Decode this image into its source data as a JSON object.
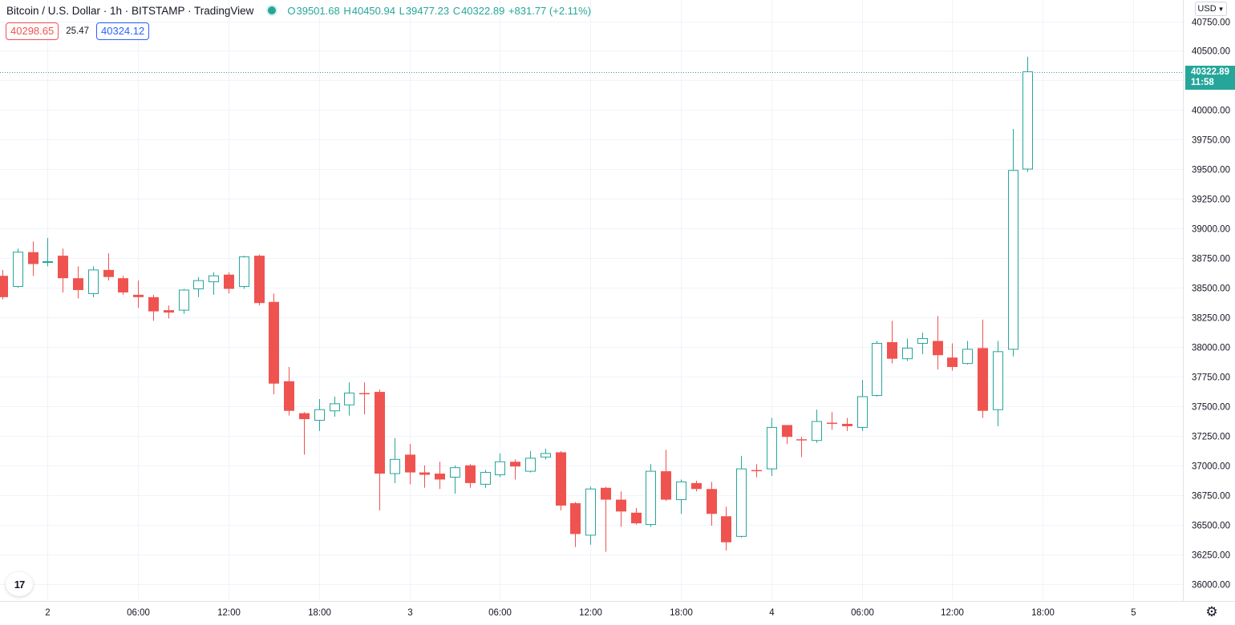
{
  "header": {
    "title": "Bitcoin / U.S. Dollar · 1h · BITSTAMP · TradingView",
    "ohlc": {
      "open_label": "O",
      "open": "39501.68",
      "high_label": "H",
      "high": "40450.94",
      "low_label": "L",
      "low": "39477.23",
      "close_label": "C",
      "close": "40322.89",
      "change": "+831.77 (+2.11%)"
    },
    "bid": "40298.65",
    "spread": "25.47",
    "ask": "40324.12"
  },
  "currency_button": {
    "label": "USD",
    "icon": "chevron-down-icon"
  },
  "last_price_tag": {
    "price": "40322.89",
    "countdown": "11:58"
  },
  "logo": {
    "text": "17"
  },
  "settings": {
    "icon": "gear-icon"
  },
  "colors": {
    "up": "#26a69a",
    "down": "#ef5350",
    "grid": "#f0f3fa",
    "axis_border": "#e0e3eb"
  },
  "chart_data": {
    "type": "candlestick",
    "symbol": "Bitcoin / U.S. Dollar",
    "interval": "1h",
    "exchange": "BITSTAMP",
    "ylim": [
      35900,
      40850
    ],
    "y_ticks": [
      36000,
      36250,
      36500,
      36750,
      37000,
      37250,
      37500,
      37750,
      38000,
      38250,
      38500,
      38750,
      39000,
      39250,
      39500,
      39750,
      40000,
      40250,
      40500,
      40750
    ],
    "x_ticks": [
      {
        "index": 3,
        "label": "2"
      },
      {
        "index": 9,
        "label": "06:00"
      },
      {
        "index": 15,
        "label": "12:00"
      },
      {
        "index": 21,
        "label": "18:00"
      },
      {
        "index": 27,
        "label": "3"
      },
      {
        "index": 33,
        "label": "06:00"
      },
      {
        "index": 39,
        "label": "12:00"
      },
      {
        "index": 45,
        "label": "18:00"
      },
      {
        "index": 51,
        "label": "4"
      },
      {
        "index": 57,
        "label": "06:00"
      },
      {
        "index": 63,
        "label": "12:00"
      },
      {
        "index": 69,
        "label": "18:00"
      },
      {
        "index": 75,
        "label": "5"
      }
    ],
    "last_price": 40322.89,
    "candles": [
      {
        "o": 38600,
        "h": 38650,
        "l": 38400,
        "c": 38420
      },
      {
        "o": 38510,
        "h": 38830,
        "l": 38500,
        "c": 38800
      },
      {
        "o": 38800,
        "h": 38890,
        "l": 38600,
        "c": 38700
      },
      {
        "o": 38720,
        "h": 38920,
        "l": 38680,
        "c": 38720
      },
      {
        "o": 38770,
        "h": 38830,
        "l": 38460,
        "c": 38580
      },
      {
        "o": 38580,
        "h": 38680,
        "l": 38410,
        "c": 38480
      },
      {
        "o": 38450,
        "h": 38680,
        "l": 38420,
        "c": 38650
      },
      {
        "o": 38650,
        "h": 38790,
        "l": 38560,
        "c": 38590
      },
      {
        "o": 38580,
        "h": 38600,
        "l": 38440,
        "c": 38460
      },
      {
        "o": 38440,
        "h": 38560,
        "l": 38330,
        "c": 38420
      },
      {
        "o": 38420,
        "h": 38440,
        "l": 38220,
        "c": 38300
      },
      {
        "o": 38310,
        "h": 38350,
        "l": 38240,
        "c": 38290
      },
      {
        "o": 38310,
        "h": 38490,
        "l": 38280,
        "c": 38480
      },
      {
        "o": 38490,
        "h": 38590,
        "l": 38420,
        "c": 38560
      },
      {
        "o": 38550,
        "h": 38630,
        "l": 38440,
        "c": 38600
      },
      {
        "o": 38610,
        "h": 38630,
        "l": 38450,
        "c": 38490
      },
      {
        "o": 38510,
        "h": 38770,
        "l": 38490,
        "c": 38760
      },
      {
        "o": 38770,
        "h": 38780,
        "l": 38350,
        "c": 38370
      },
      {
        "o": 38380,
        "h": 38450,
        "l": 37600,
        "c": 37690
      },
      {
        "o": 37710,
        "h": 37830,
        "l": 37420,
        "c": 37460
      },
      {
        "o": 37440,
        "h": 37450,
        "l": 37090,
        "c": 37390
      },
      {
        "o": 37380,
        "h": 37560,
        "l": 37290,
        "c": 37470
      },
      {
        "o": 37460,
        "h": 37580,
        "l": 37410,
        "c": 37520
      },
      {
        "o": 37510,
        "h": 37700,
        "l": 37420,
        "c": 37610
      },
      {
        "o": 37610,
        "h": 37700,
        "l": 37430,
        "c": 37600
      },
      {
        "o": 37620,
        "h": 37640,
        "l": 36620,
        "c": 36930
      },
      {
        "o": 36930,
        "h": 37230,
        "l": 36850,
        "c": 37050
      },
      {
        "o": 37090,
        "h": 37180,
        "l": 36840,
        "c": 36940
      },
      {
        "o": 36940,
        "h": 37000,
        "l": 36810,
        "c": 36920
      },
      {
        "o": 36930,
        "h": 37030,
        "l": 36800,
        "c": 36880
      },
      {
        "o": 36900,
        "h": 37000,
        "l": 36760,
        "c": 36980
      },
      {
        "o": 37000,
        "h": 37010,
        "l": 36810,
        "c": 36850
      },
      {
        "o": 36840,
        "h": 36960,
        "l": 36810,
        "c": 36940
      },
      {
        "o": 36920,
        "h": 37100,
        "l": 36900,
        "c": 37030
      },
      {
        "o": 37030,
        "h": 37050,
        "l": 36880,
        "c": 36990
      },
      {
        "o": 36950,
        "h": 37120,
        "l": 36940,
        "c": 37060
      },
      {
        "o": 37070,
        "h": 37140,
        "l": 37050,
        "c": 37100
      },
      {
        "o": 37110,
        "h": 37120,
        "l": 36620,
        "c": 36660
      },
      {
        "o": 36680,
        "h": 36690,
        "l": 36310,
        "c": 36420
      },
      {
        "o": 36410,
        "h": 36820,
        "l": 36330,
        "c": 36800
      },
      {
        "o": 36810,
        "h": 36820,
        "l": 36270,
        "c": 36710
      },
      {
        "o": 36710,
        "h": 36780,
        "l": 36480,
        "c": 36610
      },
      {
        "o": 36600,
        "h": 36640,
        "l": 36500,
        "c": 36510
      },
      {
        "o": 36500,
        "h": 37010,
        "l": 36480,
        "c": 36950
      },
      {
        "o": 36950,
        "h": 37130,
        "l": 36700,
        "c": 36710
      },
      {
        "o": 36710,
        "h": 36880,
        "l": 36590,
        "c": 36860
      },
      {
        "o": 36850,
        "h": 36870,
        "l": 36780,
        "c": 36800
      },
      {
        "o": 36800,
        "h": 36860,
        "l": 36490,
        "c": 36590
      },
      {
        "o": 36570,
        "h": 36650,
        "l": 36280,
        "c": 36350
      },
      {
        "o": 36400,
        "h": 37080,
        "l": 36390,
        "c": 36970
      },
      {
        "o": 36960,
        "h": 37010,
        "l": 36900,
        "c": 36950
      },
      {
        "o": 36970,
        "h": 37400,
        "l": 36910,
        "c": 37320
      },
      {
        "o": 37340,
        "h": 37340,
        "l": 37180,
        "c": 37240
      },
      {
        "o": 37220,
        "h": 37240,
        "l": 37070,
        "c": 37210
      },
      {
        "o": 37210,
        "h": 37470,
        "l": 37190,
        "c": 37370
      },
      {
        "o": 37360,
        "h": 37450,
        "l": 37300,
        "c": 37350
      },
      {
        "o": 37350,
        "h": 37400,
        "l": 37290,
        "c": 37330
      },
      {
        "o": 37320,
        "h": 37720,
        "l": 37290,
        "c": 37580
      },
      {
        "o": 37590,
        "h": 38050,
        "l": 37580,
        "c": 38030
      },
      {
        "o": 38040,
        "h": 38220,
        "l": 37860,
        "c": 37900
      },
      {
        "o": 37900,
        "h": 38070,
        "l": 37880,
        "c": 37990
      },
      {
        "o": 38030,
        "h": 38120,
        "l": 37940,
        "c": 38070
      },
      {
        "o": 38050,
        "h": 38260,
        "l": 37810,
        "c": 37930
      },
      {
        "o": 37910,
        "h": 38030,
        "l": 37800,
        "c": 37830
      },
      {
        "o": 37860,
        "h": 38050,
        "l": 37850,
        "c": 37980
      },
      {
        "o": 37990,
        "h": 38230,
        "l": 37400,
        "c": 37460
      },
      {
        "o": 37470,
        "h": 38050,
        "l": 37330,
        "c": 37960
      },
      {
        "o": 37980,
        "h": 39840,
        "l": 37920,
        "c": 39490
      },
      {
        "o": 39501.68,
        "h": 40450.94,
        "l": 39477.23,
        "c": 40322.89
      }
    ]
  }
}
